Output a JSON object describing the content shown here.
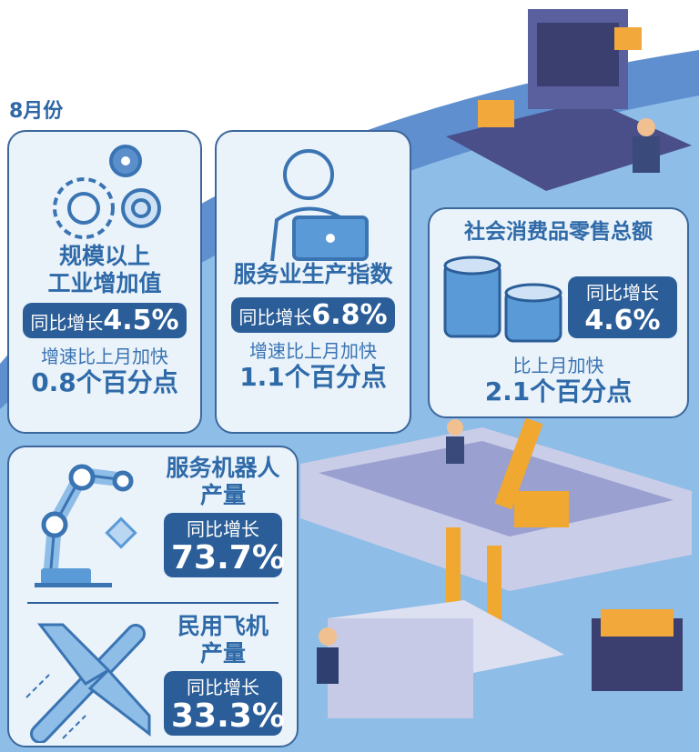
{
  "month": "8月份",
  "cards": [
    {
      "title_lines": [
        "规模以上",
        "工业增加值"
      ],
      "growth_label": "同比增长",
      "growth_value": "4.5%",
      "accel_label": "增速比上月加快",
      "accel_value": "0.8个百分点",
      "icon": "gears-icon"
    },
    {
      "title_lines": [
        "服务业生产指数"
      ],
      "growth_label": "同比增长",
      "growth_value": "6.8%",
      "accel_label": "增速比上月加快",
      "accel_value": "1.1个百分点",
      "icon": "customer-service-icon"
    },
    {
      "title_lines": [
        "社会消费品零售总额"
      ],
      "growth_label": "同比增长",
      "growth_value": "4.6%",
      "accel_label": "比上月加快",
      "accel_value": "2.1个百分点",
      "icon": "coin-stack-icon"
    },
    {
      "title_lines": [
        "服务机器人",
        "产量"
      ],
      "growth_label": "同比增长",
      "growth_value": "73.7%",
      "icon": "robot-arm-icon"
    },
    {
      "title_lines": [
        "民用飞机",
        "产量"
      ],
      "growth_label": "同比增长",
      "growth_value": "33.3%",
      "icon": "airplane-icon"
    }
  ],
  "colors": {
    "primary": "#2b5e98",
    "card_bg": "#eaf2fa",
    "background": "#8ebde7",
    "accent": "#f0a830"
  }
}
